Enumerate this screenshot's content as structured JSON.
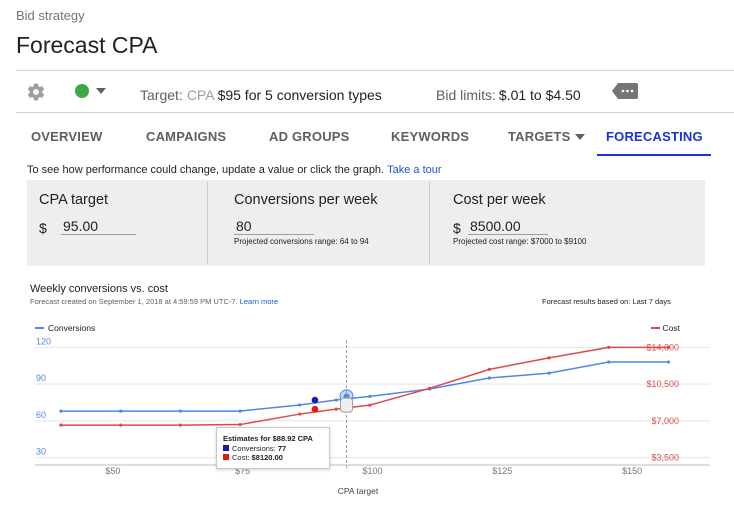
{
  "header": {
    "eyebrow": "Bid strategy",
    "title": "Forecast CPA"
  },
  "toolbar": {
    "settings_icon": "gear-icon",
    "status_color": "#3ca746",
    "target_label": "Target:",
    "target_type": "CPA",
    "target_value": "$95 for 5 conversion types",
    "bid_limits_label": "Bid limits:",
    "bid_limits_value": "$.01 to $4.50",
    "label_icon": "label-more-icon"
  },
  "tabs": [
    {
      "label": "OVERVIEW",
      "active": false
    },
    {
      "label": "CAMPAIGNS",
      "active": false
    },
    {
      "label": "AD GROUPS",
      "active": false
    },
    {
      "label": "KEYWORDS",
      "active": false
    },
    {
      "label": "TARGETS",
      "active": false,
      "dropdown": true
    },
    {
      "label": "FORECASTING",
      "active": true
    }
  ],
  "intro": {
    "text": "To see how performance could change, update a value or click the graph.",
    "link": "Take a tour"
  },
  "panel": {
    "cpa_target": {
      "label": "CPA target",
      "currency": "$",
      "value": "95.00"
    },
    "conversions": {
      "label": "Conversions per week",
      "value": "80",
      "range": "Projected conversions range: 64 to 94"
    },
    "cost": {
      "label": "Cost per week",
      "currency": "$",
      "value": "8500.00",
      "range": "Projected cost range: $7000 to $9100"
    }
  },
  "chart_header": {
    "title": "Weekly conversions vs. cost",
    "meta": "Forecast created on September 1, 2018 at 4:59:59 PM UTC-7.",
    "meta_link": "Learn more",
    "basis": "Forecast results based on: Last 7 days"
  },
  "tooltip": {
    "title": "Estimates for $88.92 CPA",
    "conversions_label": "Conversions:",
    "conversions_value": "77",
    "cost_label": "Cost:",
    "cost_value": "$8120.00"
  },
  "chart_data": {
    "type": "line",
    "title": "Weekly conversions vs. cost",
    "xlabel": "CPA target",
    "x_ticks": [
      50,
      75,
      100,
      125,
      150
    ],
    "x_tick_labels": [
      "$50",
      "$75",
      "$100",
      "$125",
      "$150"
    ],
    "xlim": [
      35,
      165
    ],
    "y_left": {
      "ticks": [
        30,
        60,
        90,
        120
      ],
      "lim": [
        24,
        126
      ]
    },
    "y_right": {
      "ticks": [
        3500,
        7000,
        10500,
        14000
      ],
      "tick_labels": [
        "$3,500",
        "$7,000",
        "$10,500",
        "$14,000"
      ],
      "lim": [
        2800,
        14700
      ]
    },
    "colors": {
      "conversions": "#4f86ec",
      "cost": "#e04848",
      "conversions_marker": "#1a1aa6",
      "cost_marker": "#e01818"
    },
    "series": [
      {
        "name": "Conversions",
        "axis": "left",
        "x": [
          40,
          51.5,
          63,
          74.5,
          86,
          93,
          99.5,
          111,
          122.5,
          134,
          145.5,
          157
        ],
        "values": [
          68,
          68,
          68,
          68,
          73,
          77,
          80,
          86,
          95,
          99,
          108,
          108
        ]
      },
      {
        "name": "Cost",
        "axis": "right",
        "x": [
          40,
          51.5,
          63,
          74.5,
          86,
          93,
          99.5,
          111,
          122.5,
          134,
          145.5,
          157
        ],
        "values": [
          6600,
          6600,
          6600,
          6650,
          7650,
          8120,
          8500,
          10100,
          11900,
          13000,
          14000,
          14000
        ]
      }
    ],
    "selected": {
      "x": 88.92,
      "conversions": 77,
      "cost": 8120
    },
    "current": {
      "x": 95,
      "conversions": 80,
      "cost": 8500
    }
  }
}
